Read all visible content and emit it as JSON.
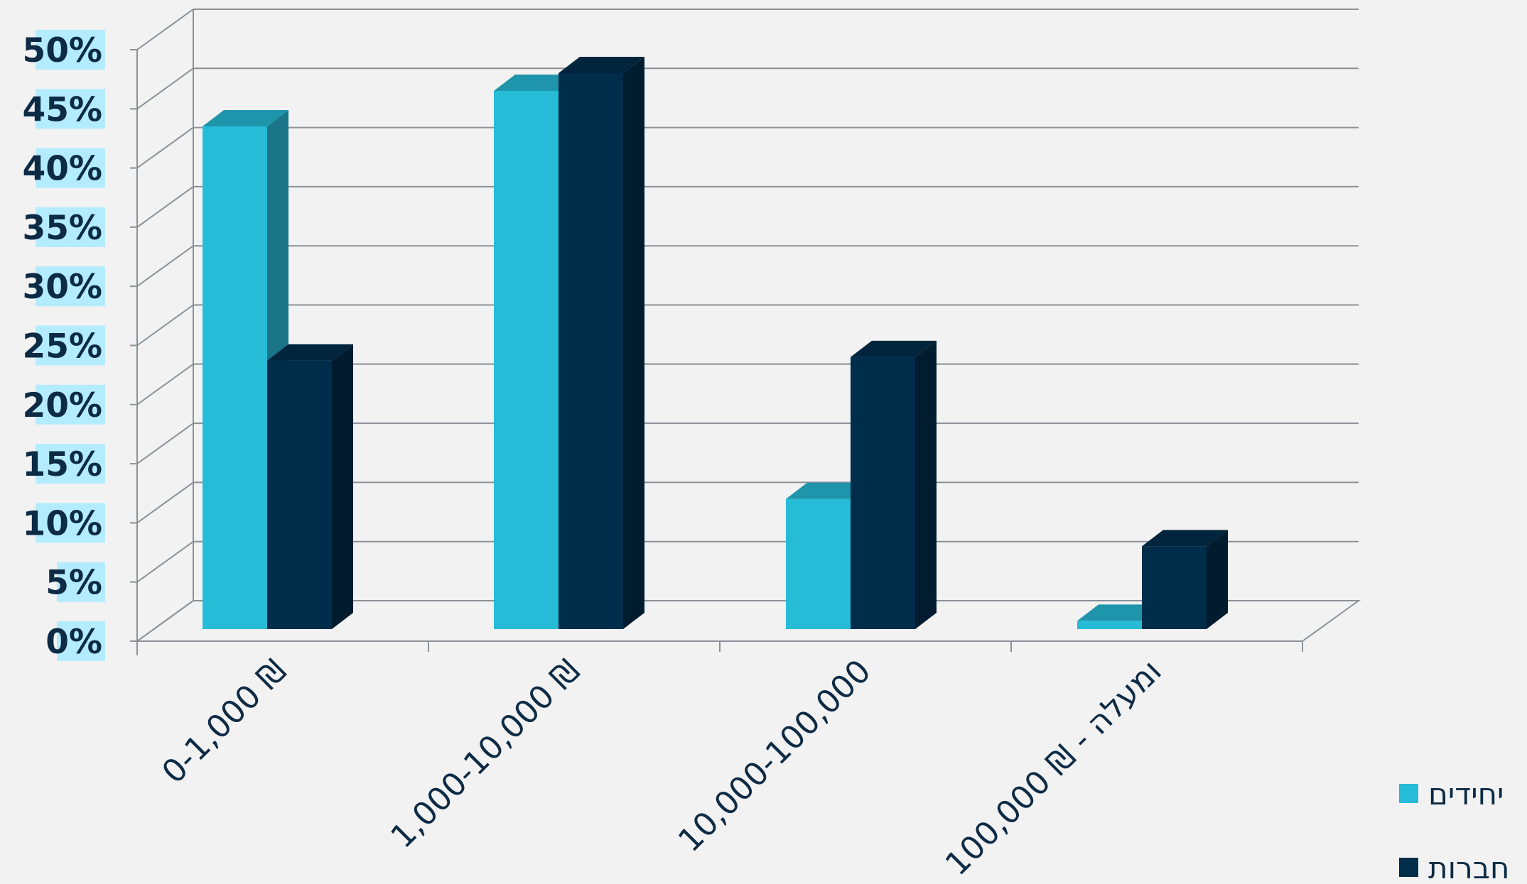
{
  "chart_data": {
    "type": "bar",
    "title": "",
    "xlabel": "",
    "ylabel": "",
    "categories": [
      "0-1,000 ₪",
      "1,000-10,000 ₪",
      "10,000-100,000",
      "100,000 ₪ - ומעלה"
    ],
    "series": [
      {
        "name": "יחידים",
        "values": [
          42.5,
          45.5,
          11,
          0.7
        ],
        "color": "#26bcd7",
        "side_color": "#1a7589",
        "top_color": "#1f95ab"
      },
      {
        "name": "חברות",
        "values": [
          22.7,
          47,
          23,
          7
        ],
        "color": "#002d4a",
        "side_color": "#001c2e",
        "top_color": "#00253d"
      }
    ],
    "ylim": [
      0,
      50
    ],
    "yticks": [
      "0%",
      "5%",
      "10%",
      "15%",
      "20%",
      "25%",
      "30%",
      "35%",
      "40%",
      "45%",
      "50%"
    ],
    "grid": true,
    "legend_position": "bottom-right",
    "colors": {
      "background": "#f2f2f2",
      "gridline": "#8a9198",
      "tick_label_bg": "#b3ecff",
      "text": "#0d2b45"
    }
  }
}
